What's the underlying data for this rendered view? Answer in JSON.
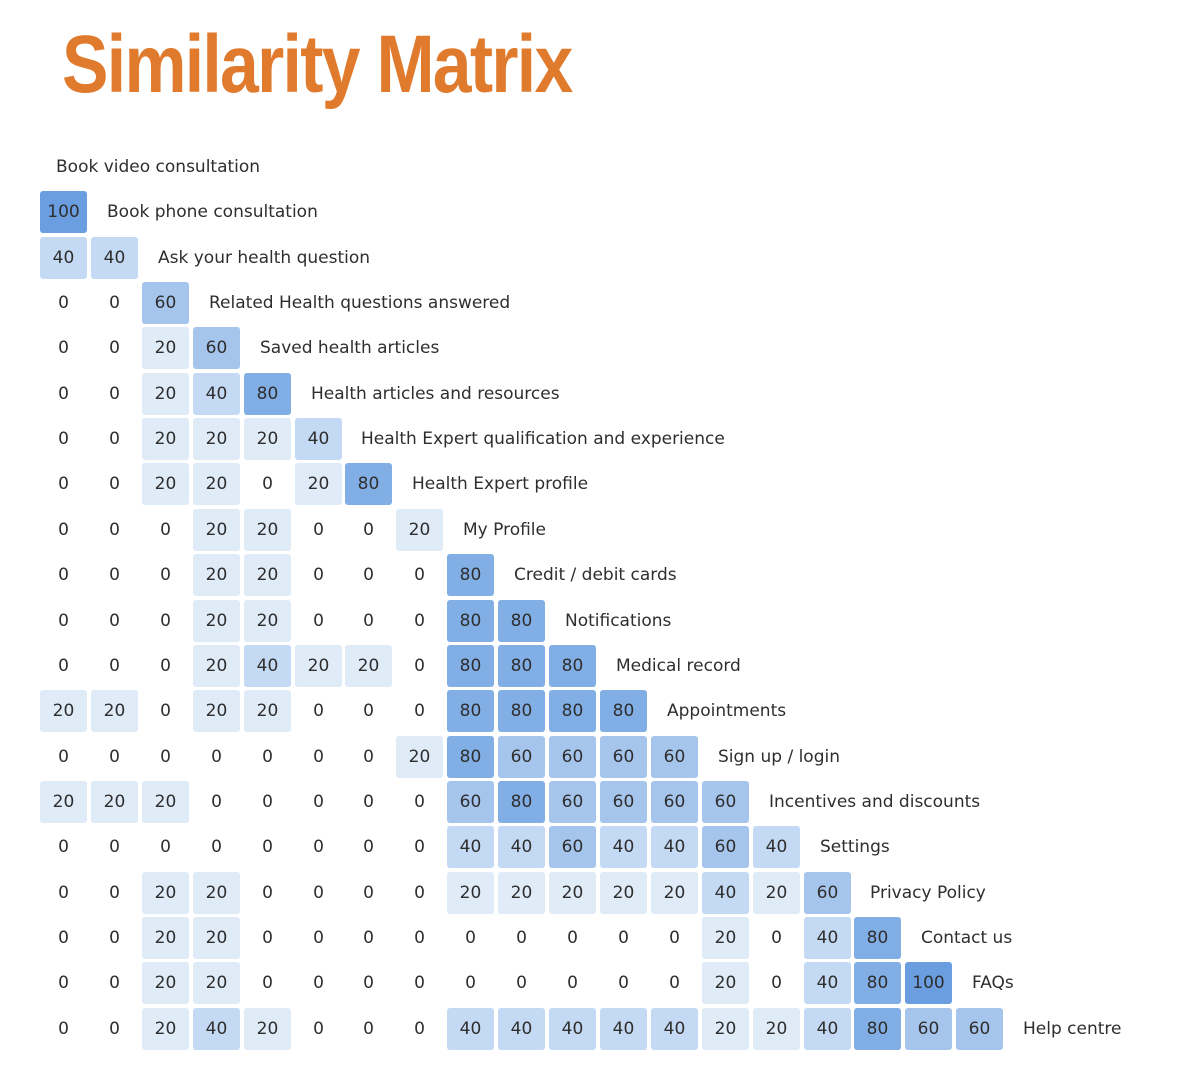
{
  "chart_data": {
    "type": "heatmap",
    "title": "Similarity Matrix",
    "rows": [
      {
        "label": "Book video consultation",
        "values": []
      },
      {
        "label": "Book phone consultation",
        "values": [
          100
        ]
      },
      {
        "label": "Ask your health question",
        "values": [
          40,
          40
        ]
      },
      {
        "label": "Related Health questions answered",
        "values": [
          0,
          0,
          60
        ]
      },
      {
        "label": "Saved health articles",
        "values": [
          0,
          0,
          20,
          60
        ]
      },
      {
        "label": "Health articles and resources",
        "values": [
          0,
          0,
          20,
          40,
          80
        ]
      },
      {
        "label": "Health Expert qualification and experience",
        "values": [
          0,
          0,
          20,
          20,
          20,
          40
        ]
      },
      {
        "label": "Health Expert profile",
        "values": [
          0,
          0,
          20,
          20,
          0,
          20,
          80
        ]
      },
      {
        "label": "My Profile",
        "values": [
          0,
          0,
          0,
          20,
          20,
          0,
          0,
          20
        ]
      },
      {
        "label": "Credit / debit cards",
        "values": [
          0,
          0,
          0,
          20,
          20,
          0,
          0,
          0,
          80
        ]
      },
      {
        "label": "Notifications",
        "values": [
          0,
          0,
          0,
          20,
          20,
          0,
          0,
          0,
          80,
          80
        ]
      },
      {
        "label": "Medical record",
        "values": [
          0,
          0,
          0,
          20,
          40,
          20,
          20,
          0,
          80,
          80,
          80
        ]
      },
      {
        "label": "Appointments",
        "values": [
          20,
          20,
          0,
          20,
          20,
          0,
          0,
          0,
          80,
          80,
          80,
          80
        ]
      },
      {
        "label": "Sign up / login",
        "values": [
          0,
          0,
          0,
          0,
          0,
          0,
          0,
          20,
          80,
          60,
          60,
          60,
          60
        ]
      },
      {
        "label": "Incentives and discounts",
        "values": [
          20,
          20,
          20,
          0,
          0,
          0,
          0,
          0,
          60,
          80,
          60,
          60,
          60,
          60
        ]
      },
      {
        "label": "Settings",
        "values": [
          0,
          0,
          0,
          0,
          0,
          0,
          0,
          0,
          40,
          40,
          60,
          40,
          40,
          60,
          40
        ]
      },
      {
        "label": "Privacy Policy",
        "values": [
          0,
          0,
          20,
          20,
          0,
          0,
          0,
          0,
          20,
          20,
          20,
          20,
          20,
          40,
          20,
          60
        ]
      },
      {
        "label": "Contact us",
        "values": [
          0,
          0,
          20,
          20,
          0,
          0,
          0,
          0,
          0,
          0,
          0,
          0,
          0,
          20,
          0,
          40,
          80
        ]
      },
      {
        "label": "FAQs",
        "values": [
          0,
          0,
          20,
          20,
          0,
          0,
          0,
          0,
          0,
          0,
          0,
          0,
          0,
          20,
          0,
          40,
          80,
          100
        ]
      },
      {
        "label": "Help centre",
        "values": [
          0,
          0,
          20,
          40,
          20,
          0,
          0,
          0,
          40,
          40,
          40,
          40,
          40,
          20,
          20,
          40,
          80,
          60,
          60
        ]
      }
    ],
    "color_scale": {
      "0": "#ffffff",
      "20": "#e0ebf8",
      "40": "#c4d9f3",
      "60": "#a6c5ed",
      "80": "#82aee6",
      "100": "#6a9ee0"
    }
  }
}
